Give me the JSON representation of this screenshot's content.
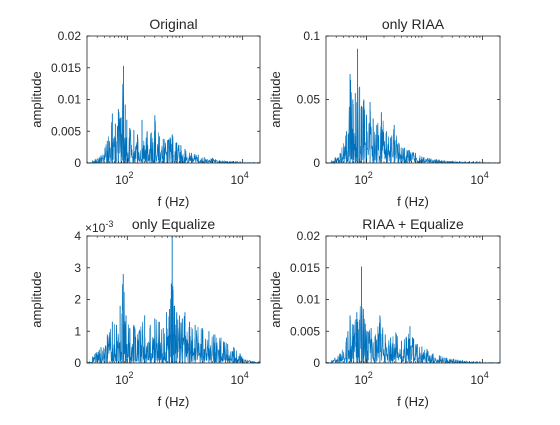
{
  "figure": {
    "layout": "2x2 subplots"
  },
  "chart_data": [
    {
      "type": "line",
      "title": "Original",
      "xlabel": "f (Hz)",
      "ylabel": "amplitude",
      "xscale": "log",
      "xlim": [
        20,
        20000
      ],
      "ylim": [
        0,
        0.02
      ],
      "yticks": [
        "0",
        "0.005",
        "0.01",
        "0.015",
        "0.02"
      ],
      "ytick_values": [
        0,
        0.005,
        0.01,
        0.015,
        0.02
      ],
      "xticks": [
        {
          "base": "10",
          "exp": "2",
          "value": 100
        },
        {
          "base": "10",
          "exp": "4",
          "value": 10000
        }
      ],
      "y_multiplier": "",
      "line_color": "#0072BD",
      "series": [
        {
          "x": [
            25,
            35,
            45,
            55,
            62,
            70,
            78,
            86,
            92,
            98,
            110,
            130,
            150,
            180,
            220,
            260,
            300,
            360,
            420,
            500,
            600,
            720,
            850,
            1000,
            1300,
            1700,
            2200,
            3000,
            4000,
            5500,
            7500,
            10000,
            15000,
            20000
          ],
          "y": [
            0.0004,
            0.0012,
            0.0035,
            0.0078,
            0.0062,
            0.0085,
            0.0072,
            0.0153,
            0.0092,
            0.0068,
            0.0055,
            0.0052,
            0.0045,
            0.0068,
            0.005,
            0.0048,
            0.0075,
            0.0042,
            0.0038,
            0.0036,
            0.0045,
            0.0032,
            0.0028,
            0.0022,
            0.0016,
            0.0013,
            0.0009,
            0.0008,
            0.0004,
            0.0003,
            0.0002,
            0.0001,
            0.0001,
            0.0001
          ]
        }
      ]
    },
    {
      "type": "line",
      "title": "only RIAA",
      "xlabel": "f (Hz)",
      "ylabel": "amplitude",
      "xscale": "log",
      "xlim": [
        20,
        20000
      ],
      "ylim": [
        0,
        0.1
      ],
      "yticks": [
        "0",
        "0.05",
        "0.1"
      ],
      "ytick_values": [
        0,
        0.05,
        0.1
      ],
      "xticks": [
        {
          "base": "10",
          "exp": "2",
          "value": 100
        },
        {
          "base": "10",
          "exp": "4",
          "value": 10000
        }
      ],
      "y_multiplier": "",
      "line_color": "#0072BD",
      "series": [
        {
          "x": [
            25,
            35,
            45,
            52,
            58,
            64,
            70,
            76,
            82,
            90,
            100,
            115,
            130,
            150,
            180,
            220,
            260,
            300,
            360,
            450,
            550,
            700,
            900,
            1200,
            1600,
            2200,
            3000,
            4500,
            7000,
            10000,
            20000
          ],
          "y": [
            0.002,
            0.008,
            0.025,
            0.07,
            0.05,
            0.055,
            0.09,
            0.06,
            0.045,
            0.05,
            0.038,
            0.048,
            0.035,
            0.03,
            0.04,
            0.025,
            0.02,
            0.03,
            0.016,
            0.012,
            0.01,
            0.008,
            0.005,
            0.004,
            0.003,
            0.002,
            0.0015,
            0.001,
            0.0008,
            0.0005,
            0.0003
          ]
        }
      ]
    },
    {
      "type": "line",
      "title": "only Equalize",
      "xlabel": "f (Hz)",
      "ylabel": "amplitude",
      "xscale": "log",
      "xlim": [
        20,
        20000
      ],
      "ylim": [
        0,
        0.004
      ],
      "yticks": [
        "0",
        "1",
        "2",
        "3",
        "4"
      ],
      "ytick_values": [
        0,
        0.001,
        0.002,
        0.003,
        0.004
      ],
      "xticks": [
        {
          "base": "10",
          "exp": "2",
          "value": 100
        },
        {
          "base": "10",
          "exp": "4",
          "value": 10000
        }
      ],
      "y_multiplier": {
        "prefix": "×10",
        "exp": "-3"
      },
      "line_color": "#0072BD",
      "series": [
        {
          "x": [
            25,
            35,
            45,
            55,
            65,
            75,
            85,
            95,
            110,
            130,
            160,
            200,
            250,
            300,
            360,
            420,
            480,
            540,
            580,
            600,
            620,
            660,
            720,
            800,
            900,
            1000,
            1200,
            1500,
            2000,
            2600,
            3300,
            4200,
            5500,
            7000,
            9000,
            12000,
            16000,
            20000
          ],
          "y": [
            0.0002,
            0.0005,
            0.0009,
            0.0013,
            0.0012,
            0.0018,
            0.0028,
            0.0015,
            0.0011,
            0.0012,
            0.001,
            0.0015,
            0.0012,
            0.0014,
            0.0013,
            0.0011,
            0.0016,
            0.0017,
            0.0025,
            0.004,
            0.0023,
            0.0018,
            0.0016,
            0.0015,
            0.0014,
            0.0016,
            0.0013,
            0.0012,
            0.0011,
            0.001,
            0.0009,
            0.0008,
            0.0006,
            0.0005,
            0.0003,
            0.0001,
            5e-05,
            5e-05
          ]
        }
      ]
    },
    {
      "type": "line",
      "title": "RIAA + Equalize",
      "xlabel": "f (Hz)",
      "ylabel": "amplitude",
      "xscale": "log",
      "xlim": [
        20,
        20000
      ],
      "ylim": [
        0,
        0.02
      ],
      "yticks": [
        "0",
        "0.005",
        "0.01",
        "0.015",
        "0.02"
      ],
      "ytick_values": [
        0,
        0.005,
        0.01,
        0.015,
        0.02
      ],
      "xticks": [
        {
          "base": "10",
          "exp": "2",
          "value": 100
        },
        {
          "base": "10",
          "exp": "4",
          "value": 10000
        }
      ],
      "y_multiplier": "",
      "line_color": "#0072BD",
      "series": [
        {
          "x": [
            25,
            35,
            45,
            52,
            60,
            68,
            76,
            82,
            88,
            95,
            105,
            120,
            140,
            170,
            210,
            260,
            320,
            400,
            480,
            560,
            650,
            750,
            900,
            1100,
            1400,
            1800,
            2400,
            3200,
            4500,
            6500,
            9000,
            13000,
            20000
          ],
          "y": [
            0.0004,
            0.0015,
            0.004,
            0.0075,
            0.006,
            0.008,
            0.0068,
            0.0152,
            0.0085,
            0.0062,
            0.005,
            0.0055,
            0.0042,
            0.0075,
            0.0045,
            0.004,
            0.0048,
            0.0035,
            0.004,
            0.0058,
            0.0038,
            0.003,
            0.0026,
            0.0022,
            0.0015,
            0.0012,
            0.0008,
            0.0006,
            0.0004,
            0.0002,
            0.0001,
            0.0001,
            0.0001
          ]
        }
      ]
    }
  ]
}
